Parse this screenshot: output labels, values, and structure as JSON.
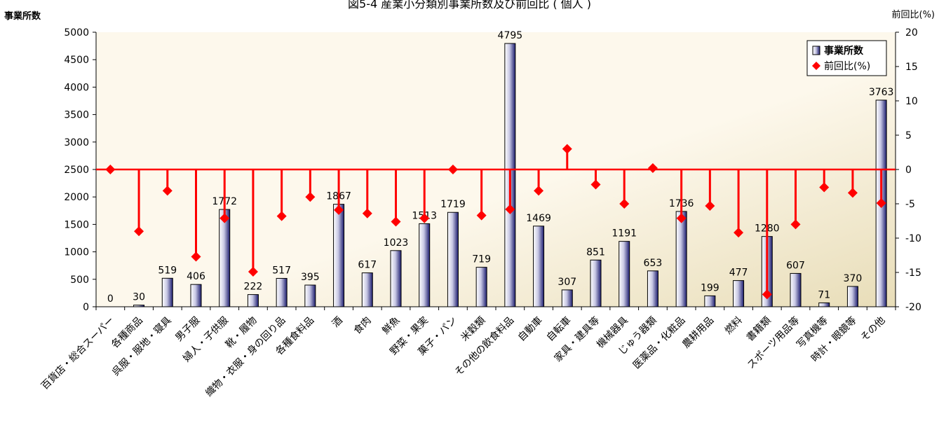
{
  "chart_data": {
    "type": "bar",
    "title": "図5-4  産業小分類別事業所数及び前回比 ( 個人 )",
    "ylabel": "事業所数",
    "y2label": "前回比(%)",
    "ylim": [
      0,
      5000
    ],
    "y2lim": [
      -20,
      20
    ],
    "yticks": [
      "0",
      "500",
      "1000",
      "1500",
      "2000",
      "2500",
      "3000",
      "3500",
      "4000",
      "4500",
      "5000"
    ],
    "y2ticks": [
      "-20",
      "-15",
      "-10",
      "-5",
      "0",
      "5",
      "10",
      "15",
      "20"
    ],
    "grid": false,
    "legend_position": "top-right",
    "categories": [
      "百貨店・総合スーパー",
      "各種商品",
      "呉服・服地・寝具",
      "男子服",
      "婦人・子供服",
      "靴・履物",
      "織物・衣服・身の回り品",
      "各種食料品",
      "酒",
      "食肉",
      "鮮魚",
      "野菜・果実",
      "菓子・パン",
      "米穀類",
      "その他の飲食料品",
      "自動車",
      "自転車",
      "家具・建具等",
      "機械器具",
      "じゅう器類",
      "医薬品・化粧品",
      "農耕用品",
      "燃料",
      "書籍類",
      "スポーツ用品等",
      "写真機等",
      "時計・眼鏡等",
      "その他"
    ],
    "series": [
      {
        "name": "事業所数",
        "kind": "bar",
        "axis": "left",
        "values": [
          0,
          30,
          519,
          406,
          1772,
          222,
          517,
          395,
          1867,
          617,
          1023,
          1513,
          1719,
          719,
          4795,
          1469,
          307,
          851,
          1191,
          653,
          1736,
          199,
          477,
          1280,
          607,
          71,
          370,
          3763
        ],
        "labels": [
          "0",
          "30",
          "519",
          "406",
          "1772",
          "222",
          "517",
          "395",
          "1867",
          "617",
          "1023",
          "1513",
          "1719",
          "719",
          "4795",
          "1469",
          "307",
          "851",
          "1191",
          "653",
          "1736",
          "199",
          "477",
          "1280",
          "607",
          "71",
          "370",
          "3763"
        ]
      },
      {
        "name": "前回比(%)",
        "kind": "marker-drop",
        "axis": "right",
        "values": [
          0,
          -9.0,
          -3.1,
          -12.7,
          -7.1,
          -14.9,
          -6.8,
          -4.0,
          -5.9,
          -6.4,
          -7.6,
          -7.1,
          0,
          -6.7,
          -5.8,
          -3.1,
          3.0,
          -2.2,
          -5.0,
          0.2,
          -7.1,
          -5.3,
          -9.2,
          -18.2,
          -8.0,
          -2.6,
          -3.4,
          -4.9
        ]
      }
    ],
    "colors": {
      "bar_fill_light": "#ffffff",
      "bar_fill_dark": "#1c1c6e",
      "bar_stroke": "#000000",
      "drop_line": "#ff0000",
      "marker": "#ff0000",
      "zero_line": "#ff0000",
      "plot_bg_light": "#fdf8ec",
      "plot_bg_dark": "#e8ddb8"
    }
  }
}
